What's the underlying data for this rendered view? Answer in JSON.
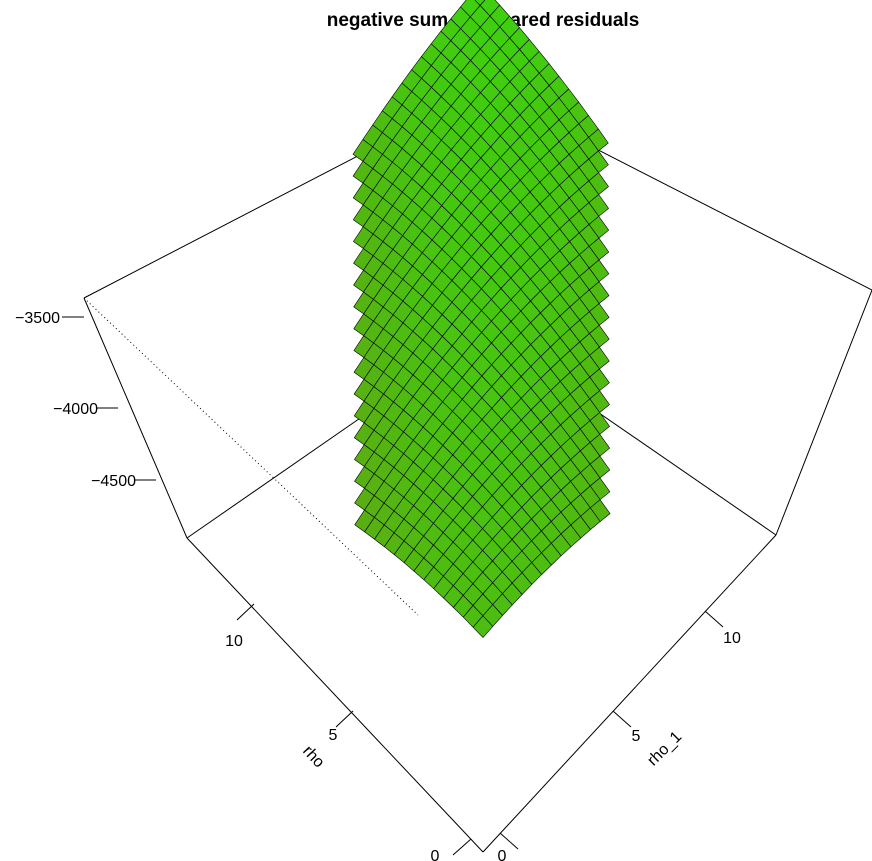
{
  "chart_data": {
    "type": "surface3d",
    "title": "negative sum of squared residuals",
    "xlabel": "rho",
    "ylabel": "rho_1",
    "zlabel": "",
    "x_ticks": [
      "0",
      "5",
      "10"
    ],
    "y_ticks": [
      "0",
      "5",
      "10"
    ],
    "z_ticks": [
      "-3500",
      "-4000",
      "-4500"
    ],
    "xlim": [
      0,
      15
    ],
    "ylim": [
      0,
      15
    ],
    "zlim": [
      -5000,
      -3400
    ],
    "color_low": "#c0301a",
    "color_high": "#3fcf10",
    "grid": false,
    "surface": {
      "model": "z = -3450 - 3.6*(x - y)^2 - 10*(15 - y)",
      "x_range": [
        0,
        15
      ],
      "y_range": [
        0,
        15
      ],
      "visible_band": "|x - y| <= 6"
    }
  }
}
